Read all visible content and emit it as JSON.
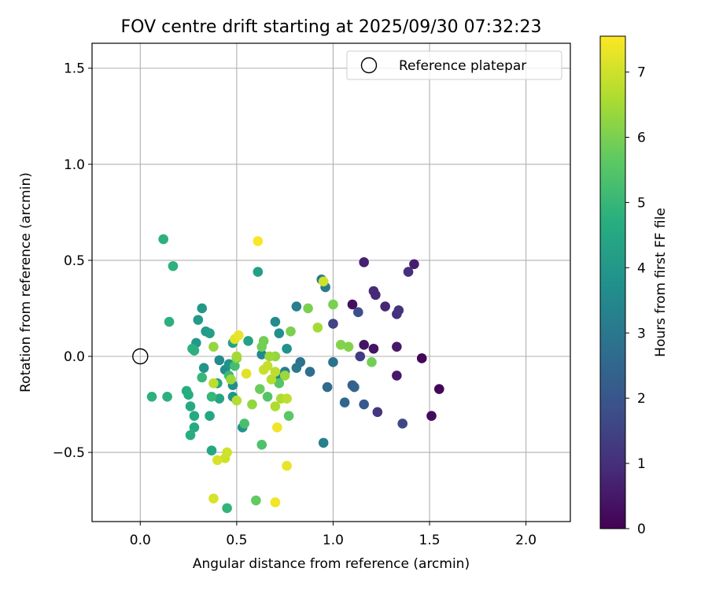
{
  "chart_data": {
    "type": "scatter",
    "title": "FOV centre drift starting at 2025/09/30 07:32:23",
    "xlabel": "Angular distance from reference (arcmin)",
    "ylabel": "Rotation from reference (arcmin)",
    "xlim": [
      -0.25,
      2.23
    ],
    "ylim": [
      -0.86,
      1.63
    ],
    "xticks": [
      0.0,
      0.5,
      1.0,
      1.5,
      2.0
    ],
    "xtick_labels": [
      "0.0",
      "0.5",
      "1.0",
      "1.5",
      "2.0"
    ],
    "yticks": [
      -0.5,
      0.0,
      0.5,
      1.0,
      1.5
    ],
    "ytick_labels": [
      "−0.5",
      "0.0",
      "0.5",
      "1.0",
      "1.5"
    ],
    "grid": true,
    "legend": {
      "position": "top-right",
      "label": "Reference platepar"
    },
    "reference_point": {
      "x": 0.0,
      "y": 0.0
    },
    "colorbar": {
      "label": "Hours from first FF file",
      "min": 0,
      "max": 7.55,
      "ticks": [
        0,
        1,
        2,
        3,
        4,
        5,
        6,
        7
      ],
      "tick_labels": [
        "0",
        "1",
        "2",
        "3",
        "4",
        "5",
        "6",
        "7"
      ],
      "colormap": "viridis"
    },
    "points": [
      {
        "x": 1.46,
        "y": -0.01,
        "h": 0.1
      },
      {
        "x": 1.55,
        "y": -0.17,
        "h": 0.1
      },
      {
        "x": 1.51,
        "y": -0.31,
        "h": 0.2
      },
      {
        "x": 1.1,
        "y": 0.27,
        "h": 0.3
      },
      {
        "x": 1.16,
        "y": 0.06,
        "h": 0.4
      },
      {
        "x": 1.21,
        "y": 0.04,
        "h": 0.4
      },
      {
        "x": 1.33,
        "y": 0.05,
        "h": 0.5
      },
      {
        "x": 1.33,
        "y": -0.1,
        "h": 0.5
      },
      {
        "x": 1.42,
        "y": 0.48,
        "h": 0.6
      },
      {
        "x": 1.16,
        "y": 0.49,
        "h": 0.7
      },
      {
        "x": 1.27,
        "y": 0.26,
        "h": 0.8
      },
      {
        "x": 1.22,
        "y": 0.32,
        "h": 0.9
      },
      {
        "x": 1.21,
        "y": 0.34,
        "h": 0.9
      },
      {
        "x": 1.39,
        "y": 0.44,
        "h": 1.0
      },
      {
        "x": 1.33,
        "y": 0.22,
        "h": 1.0
      },
      {
        "x": 1.34,
        "y": 0.24,
        "h": 1.1
      },
      {
        "x": 1.23,
        "y": -0.29,
        "h": 1.2
      },
      {
        "x": 1.14,
        "y": 0.0,
        "h": 1.3
      },
      {
        "x": 1.0,
        "y": 0.17,
        "h": 1.5
      },
      {
        "x": 1.36,
        "y": -0.35,
        "h": 1.6
      },
      {
        "x": 1.13,
        "y": 0.23,
        "h": 1.8
      },
      {
        "x": 1.16,
        "y": -0.25,
        "h": 2.1
      },
      {
        "x": 1.1,
        "y": -0.15,
        "h": 2.3
      },
      {
        "x": 1.11,
        "y": -0.16,
        "h": 2.4
      },
      {
        "x": 1.06,
        "y": -0.24,
        "h": 2.5
      },
      {
        "x": 0.97,
        "y": -0.16,
        "h": 2.6
      },
      {
        "x": 0.88,
        "y": -0.08,
        "h": 2.7
      },
      {
        "x": 0.83,
        "y": -0.03,
        "h": 2.8
      },
      {
        "x": 1.0,
        "y": -0.03,
        "h": 2.9
      },
      {
        "x": 0.81,
        "y": -0.06,
        "h": 3.0
      },
      {
        "x": 0.94,
        "y": 0.4,
        "h": 3.0
      },
      {
        "x": 0.96,
        "y": 0.36,
        "h": 3.1
      },
      {
        "x": 0.81,
        "y": 0.26,
        "h": 3.2
      },
      {
        "x": 0.95,
        "y": -0.45,
        "h": 3.3
      },
      {
        "x": 0.75,
        "y": -0.08,
        "h": 3.3
      },
      {
        "x": 0.71,
        "y": -0.11,
        "h": 3.4
      },
      {
        "x": 0.63,
        "y": 0.01,
        "h": 3.5
      },
      {
        "x": 0.7,
        "y": 0.18,
        "h": 3.6
      },
      {
        "x": 0.72,
        "y": 0.12,
        "h": 3.7
      },
      {
        "x": 0.76,
        "y": 0.04,
        "h": 3.8
      },
      {
        "x": 0.41,
        "y": -0.02,
        "h": 3.6
      },
      {
        "x": 0.44,
        "y": -0.07,
        "h": 3.6
      },
      {
        "x": 0.48,
        "y": -0.15,
        "h": 3.7
      },
      {
        "x": 0.46,
        "y": -0.04,
        "h": 3.8
      },
      {
        "x": 0.53,
        "y": -0.37,
        "h": 3.8
      },
      {
        "x": 0.48,
        "y": -0.21,
        "h": 3.9
      },
      {
        "x": 0.33,
        "y": -0.06,
        "h": 3.9
      },
      {
        "x": 0.29,
        "y": 0.07,
        "h": 4.0
      },
      {
        "x": 0.32,
        "y": 0.25,
        "h": 4.0
      },
      {
        "x": 0.3,
        "y": 0.19,
        "h": 4.1
      },
      {
        "x": 0.34,
        "y": 0.13,
        "h": 4.1
      },
      {
        "x": 0.36,
        "y": 0.12,
        "h": 4.2
      },
      {
        "x": 0.61,
        "y": 0.44,
        "h": 4.2
      },
      {
        "x": 0.56,
        "y": 0.08,
        "h": 4.3
      },
      {
        "x": 0.48,
        "y": 0.07,
        "h": 4.3
      },
      {
        "x": 0.4,
        "y": -0.14,
        "h": 4.4
      },
      {
        "x": 0.41,
        "y": -0.22,
        "h": 4.4
      },
      {
        "x": 0.36,
        "y": -0.31,
        "h": 4.5
      },
      {
        "x": 0.37,
        "y": -0.49,
        "h": 4.5
      },
      {
        "x": 0.28,
        "y": -0.31,
        "h": 4.6
      },
      {
        "x": 0.28,
        "y": -0.37,
        "h": 4.6
      },
      {
        "x": 0.26,
        "y": -0.26,
        "h": 4.6
      },
      {
        "x": 0.24,
        "y": -0.18,
        "h": 4.7
      },
      {
        "x": 0.25,
        "y": -0.2,
        "h": 4.7
      },
      {
        "x": 0.26,
        "y": -0.41,
        "h": 4.7
      },
      {
        "x": 0.27,
        "y": 0.04,
        "h": 4.8
      },
      {
        "x": 0.28,
        "y": 0.03,
        "h": 4.8
      },
      {
        "x": 0.12,
        "y": 0.61,
        "h": 4.8
      },
      {
        "x": 0.17,
        "y": 0.47,
        "h": 4.8
      },
      {
        "x": 0.15,
        "y": 0.18,
        "h": 4.8
      },
      {
        "x": 0.06,
        "y": -0.21,
        "h": 4.8
      },
      {
        "x": 0.14,
        "y": -0.21,
        "h": 4.8
      },
      {
        "x": 0.45,
        "y": -0.79,
        "h": 4.9
      },
      {
        "x": 0.37,
        "y": -0.21,
        "h": 5.0
      },
      {
        "x": 0.32,
        "y": -0.11,
        "h": 5.0
      },
      {
        "x": 0.46,
        "y": -0.1,
        "h": 5.1
      },
      {
        "x": 0.49,
        "y": -0.05,
        "h": 5.2
      },
      {
        "x": 0.54,
        "y": -0.35,
        "h": 5.3
      },
      {
        "x": 0.63,
        "y": -0.46,
        "h": 5.4
      },
      {
        "x": 0.66,
        "y": -0.21,
        "h": 5.5
      },
      {
        "x": 0.72,
        "y": -0.14,
        "h": 5.5
      },
      {
        "x": 0.77,
        "y": -0.31,
        "h": 5.6
      },
      {
        "x": 0.6,
        "y": -0.75,
        "h": 5.7
      },
      {
        "x": 0.62,
        "y": -0.17,
        "h": 5.8
      },
      {
        "x": 0.64,
        "y": 0.08,
        "h": 5.9
      },
      {
        "x": 0.63,
        "y": 0.05,
        "h": 5.9
      },
      {
        "x": 0.78,
        "y": 0.13,
        "h": 6.0
      },
      {
        "x": 0.87,
        "y": 0.25,
        "h": 6.0
      },
      {
        "x": 1.0,
        "y": 0.27,
        "h": 6.0
      },
      {
        "x": 1.04,
        "y": 0.06,
        "h": 6.1
      },
      {
        "x": 1.08,
        "y": 0.05,
        "h": 6.1
      },
      {
        "x": 1.2,
        "y": -0.03,
        "h": 5.9
      },
      {
        "x": 0.5,
        "y": -0.01,
        "h": 6.1
      },
      {
        "x": 0.38,
        "y": 0.05,
        "h": 6.3
      },
      {
        "x": 0.7,
        "y": 0.0,
        "h": 6.3
      },
      {
        "x": 0.58,
        "y": -0.25,
        "h": 6.3
      },
      {
        "x": 0.67,
        "y": 0.0,
        "h": 6.4
      },
      {
        "x": 0.75,
        "y": -0.1,
        "h": 6.4
      },
      {
        "x": 0.47,
        "y": -0.12,
        "h": 6.4
      },
      {
        "x": 0.5,
        "y": 0.0,
        "h": 6.5
      },
      {
        "x": 0.92,
        "y": 0.15,
        "h": 6.5
      },
      {
        "x": 0.73,
        "y": -0.22,
        "h": 6.6
      },
      {
        "x": 0.7,
        "y": -0.26,
        "h": 6.6
      },
      {
        "x": 0.68,
        "y": -0.12,
        "h": 6.7
      },
      {
        "x": 0.5,
        "y": -0.23,
        "h": 6.7
      },
      {
        "x": 0.38,
        "y": -0.14,
        "h": 6.8
      },
      {
        "x": 0.76,
        "y": -0.22,
        "h": 6.8
      },
      {
        "x": 0.7,
        "y": -0.08,
        "h": 6.8
      },
      {
        "x": 0.66,
        "y": -0.05,
        "h": 6.9
      },
      {
        "x": 0.64,
        "y": -0.07,
        "h": 6.9
      },
      {
        "x": 0.95,
        "y": 0.39,
        "h": 7.0
      },
      {
        "x": 0.44,
        "y": -0.53,
        "h": 7.0
      },
      {
        "x": 0.45,
        "y": -0.5,
        "h": 7.0
      },
      {
        "x": 0.38,
        "y": -0.74,
        "h": 7.1
      },
      {
        "x": 0.4,
        "y": -0.54,
        "h": 7.1
      },
      {
        "x": 0.55,
        "y": -0.09,
        "h": 7.2
      },
      {
        "x": 0.49,
        "y": 0.09,
        "h": 7.2
      },
      {
        "x": 0.51,
        "y": 0.11,
        "h": 7.3
      },
      {
        "x": 0.76,
        "y": -0.57,
        "h": 7.3
      },
      {
        "x": 0.71,
        "y": -0.37,
        "h": 7.4
      },
      {
        "x": 0.7,
        "y": -0.76,
        "h": 7.4
      },
      {
        "x": 0.61,
        "y": 0.6,
        "h": 7.5
      }
    ]
  }
}
